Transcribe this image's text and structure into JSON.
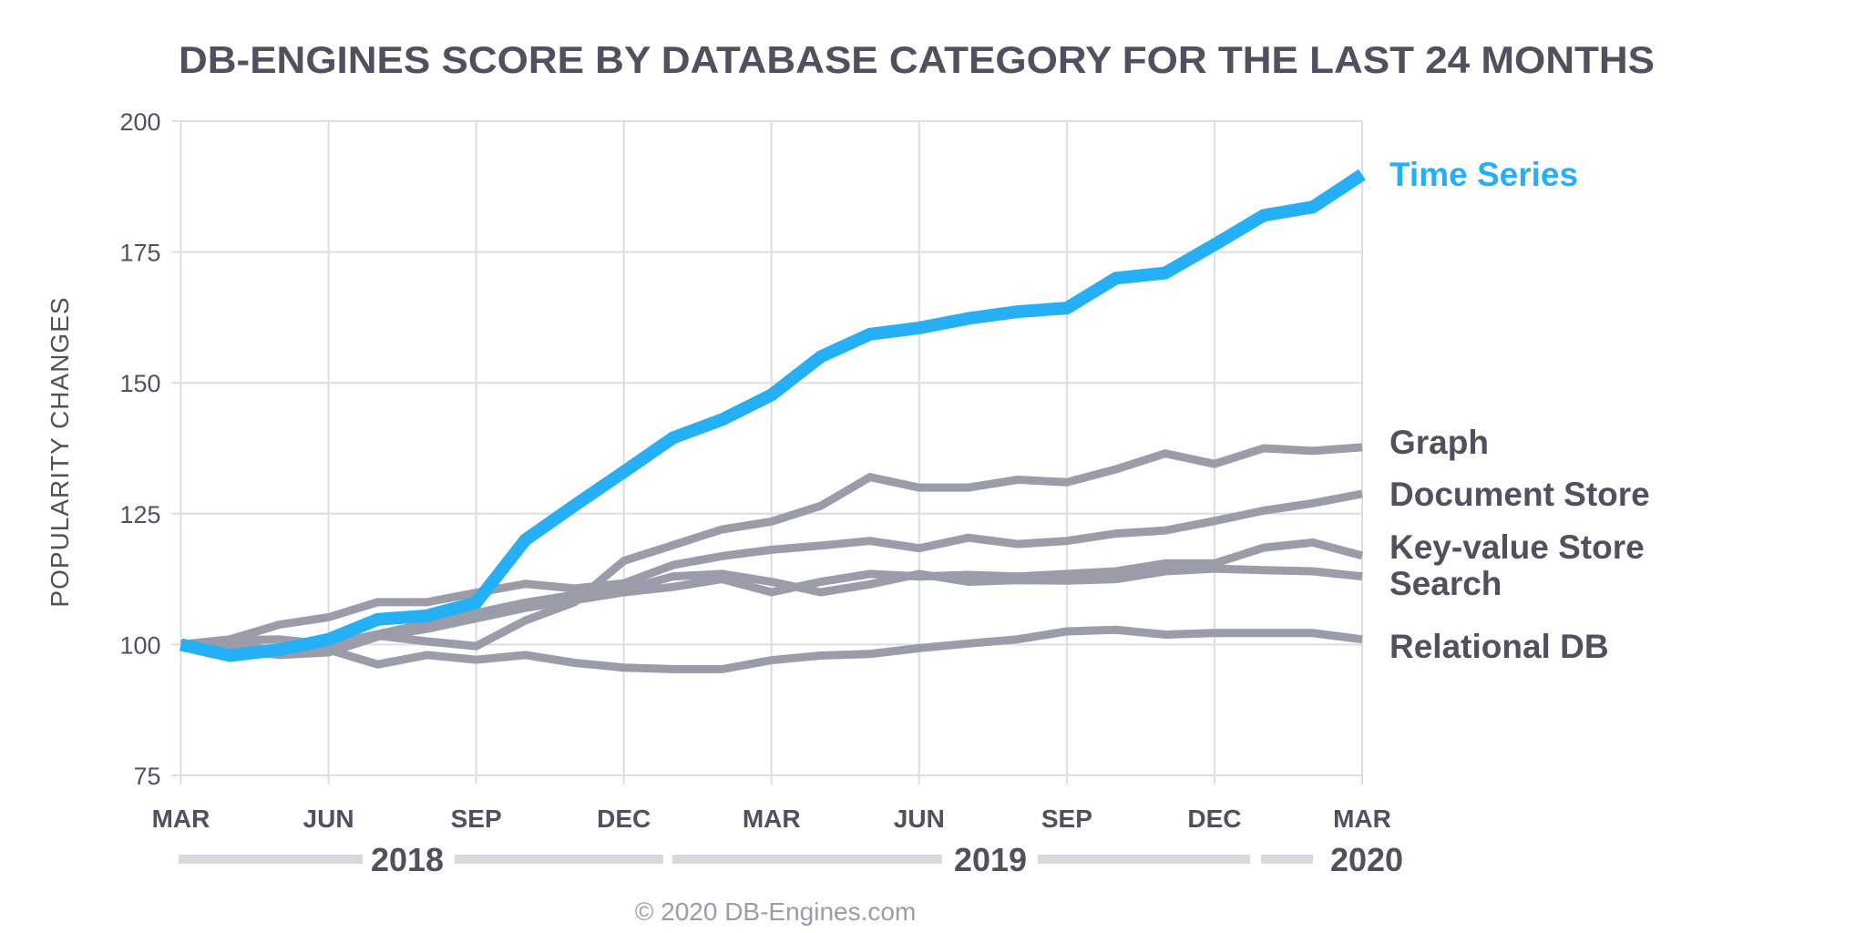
{
  "chart_data": {
    "type": "line",
    "title": "DB-ENGINES SCORE BY DATABASE CATEGORY FOR THE LAST 24 MONTHS",
    "xlabel": "",
    "ylabel": "POPULARITY CHANGES",
    "ylim": [
      75,
      200
    ],
    "yticks": [
      "200",
      "175",
      "150",
      "125",
      "100",
      "75"
    ],
    "ytick_values": [
      200,
      175,
      150,
      125,
      100,
      75
    ],
    "xtick_labels": [
      "MAR",
      "JUN",
      "SEP",
      "DEC",
      "MAR",
      "JUN",
      "SEP",
      "DEC",
      "MAR"
    ],
    "xtick_month_index": [
      0,
      3,
      6,
      9,
      12,
      15,
      18,
      21,
      24
    ],
    "years": [
      "2018",
      "2019",
      "2020"
    ],
    "x": [
      "2018-03",
      "2018-04",
      "2018-05",
      "2018-06",
      "2018-07",
      "2018-08",
      "2018-09",
      "2018-10",
      "2018-11",
      "2018-12",
      "2019-01",
      "2019-02",
      "2019-03",
      "2019-04",
      "2019-05",
      "2019-06",
      "2019-07",
      "2019-08",
      "2019-09",
      "2019-10",
      "2019-11",
      "2019-12",
      "2020-01",
      "2020-02",
      "2020-03"
    ],
    "grid": true,
    "legend": "right (direct labels)",
    "series": [
      {
        "name": "Relational DB",
        "color": "#9a9ca9",
        "highlight": false,
        "values": [
          100,
          100.5,
          98.5,
          99,
          96.2,
          98,
          97.1,
          98,
          96.5,
          95.6,
          95.3,
          95.3,
          97,
          97.9,
          98.2,
          99.3,
          100.2,
          101,
          102.5,
          102.8,
          101.9,
          102.2,
          102.2,
          102.2,
          101
        ]
      },
      {
        "name": "Search",
        "color": "#9a9ca9",
        "highlight": false,
        "values": [
          100,
          99.5,
          99,
          100,
          102,
          104,
          106,
          108,
          109.5,
          110.5,
          113,
          113.5,
          112,
          110,
          111.5,
          113.5,
          112,
          112.3,
          112.2,
          112.5,
          114,
          114.5,
          114.2,
          114,
          113
        ]
      },
      {
        "name": "Key-value Store",
        "color": "#9a9ca9",
        "highlight": false,
        "values": [
          100,
          99,
          98,
          98.5,
          101.5,
          103,
          105,
          107,
          108.5,
          110,
          111,
          112.5,
          110,
          112,
          113.5,
          113,
          113.3,
          113,
          113.5,
          114,
          115.5,
          115.5,
          118.5,
          119.5,
          117
        ]
      },
      {
        "name": "Document Store",
        "color": "#9a9ca9",
        "highlight": false,
        "values": [
          100,
          101,
          103.8,
          105.2,
          108.1,
          108.1,
          109.9,
          111.6,
          110.7,
          111.7,
          115.2,
          116.9,
          118.1,
          118.9,
          119.8,
          118.4,
          120.4,
          119.2,
          119.8,
          121.2,
          121.8,
          123.6,
          125.6,
          127,
          128.8
        ]
      },
      {
        "name": "Graph",
        "color": "#9a9ca9",
        "highlight": false,
        "values": [
          100,
          100.8,
          101,
          100,
          101.7,
          100.6,
          99.7,
          104.6,
          108.1,
          116,
          119,
          122,
          123.5,
          126.5,
          132,
          130,
          130,
          131.5,
          131,
          133.5,
          136.5,
          134.5,
          137.5,
          137,
          137.7
        ]
      },
      {
        "name": "Time Series",
        "color": "#25aff5",
        "highlight": true,
        "values": [
          100,
          97.9,
          99,
          101,
          104.8,
          105.5,
          108,
          120,
          126.6,
          133,
          139.5,
          143,
          147.7,
          155,
          159.3,
          160.5,
          162.3,
          163.6,
          164.3,
          170,
          171,
          176.4,
          182,
          183.6,
          189.8
        ]
      }
    ],
    "labels": {
      "time_series": "Time Series",
      "graph": "Graph",
      "document_store": "Document Store",
      "key_value": "Key-value Store",
      "search": "Search",
      "relational": "Relational DB"
    },
    "footer": "© 2020 DB-Engines.com"
  }
}
